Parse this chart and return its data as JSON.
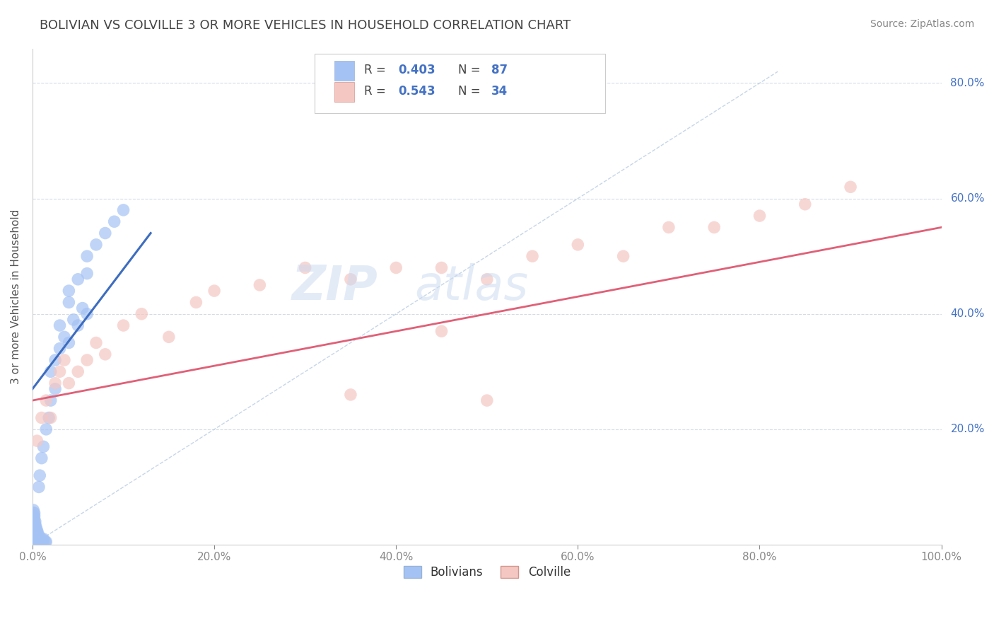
{
  "title": "BOLIVIAN VS COLVILLE 3 OR MORE VEHICLES IN HOUSEHOLD CORRELATION CHART",
  "source": "Source: ZipAtlas.com",
  "ylabel": "3 or more Vehicles in Household",
  "blue_R": "0.403",
  "blue_N": "87",
  "pink_R": "0.543",
  "pink_N": "34",
  "blue_color": "#a4c2f4",
  "pink_color": "#f4c7c3",
  "blue_line_color": "#3d6dbf",
  "pink_line_color": "#e06077",
  "diagonal_color": "#b8cce4",
  "background_color": "#ffffff",
  "grid_color": "#d0d8e0",
  "watermark_color": "#c9d9f0",
  "title_color": "#444444",
  "ytick_color": "#4472c4",
  "xtick_color": "#888888",
  "blue_dots": [
    [
      0.001,
      0.005
    ],
    [
      0.001,
      0.008
    ],
    [
      0.001,
      0.01
    ],
    [
      0.001,
      0.015
    ],
    [
      0.001,
      0.02
    ],
    [
      0.001,
      0.025
    ],
    [
      0.001,
      0.03
    ],
    [
      0.001,
      0.035
    ],
    [
      0.001,
      0.04
    ],
    [
      0.001,
      0.045
    ],
    [
      0.001,
      0.05
    ],
    [
      0.001,
      0.055
    ],
    [
      0.001,
      0.06
    ],
    [
      0.002,
      0.005
    ],
    [
      0.002,
      0.01
    ],
    [
      0.002,
      0.015
    ],
    [
      0.002,
      0.02
    ],
    [
      0.002,
      0.025
    ],
    [
      0.002,
      0.03
    ],
    [
      0.002,
      0.035
    ],
    [
      0.002,
      0.04
    ],
    [
      0.002,
      0.045
    ],
    [
      0.002,
      0.05
    ],
    [
      0.002,
      0.055
    ],
    [
      0.003,
      0.005
    ],
    [
      0.003,
      0.01
    ],
    [
      0.003,
      0.015
    ],
    [
      0.003,
      0.02
    ],
    [
      0.003,
      0.025
    ],
    [
      0.003,
      0.03
    ],
    [
      0.003,
      0.035
    ],
    [
      0.003,
      0.04
    ],
    [
      0.004,
      0.005
    ],
    [
      0.004,
      0.01
    ],
    [
      0.004,
      0.015
    ],
    [
      0.004,
      0.02
    ],
    [
      0.004,
      0.025
    ],
    [
      0.004,
      0.03
    ],
    [
      0.005,
      0.005
    ],
    [
      0.005,
      0.01
    ],
    [
      0.005,
      0.015
    ],
    [
      0.005,
      0.02
    ],
    [
      0.005,
      0.025
    ],
    [
      0.006,
      0.005
    ],
    [
      0.006,
      0.01
    ],
    [
      0.006,
      0.015
    ],
    [
      0.006,
      0.02
    ],
    [
      0.007,
      0.005
    ],
    [
      0.007,
      0.01
    ],
    [
      0.007,
      0.015
    ],
    [
      0.008,
      0.005
    ],
    [
      0.008,
      0.01
    ],
    [
      0.009,
      0.005
    ],
    [
      0.009,
      0.01
    ],
    [
      0.01,
      0.005
    ],
    [
      0.01,
      0.01
    ],
    [
      0.012,
      0.005
    ],
    [
      0.012,
      0.01
    ],
    [
      0.014,
      0.005
    ],
    [
      0.015,
      0.005
    ],
    [
      0.03,
      0.38
    ],
    [
      0.04,
      0.42
    ],
    [
      0.04,
      0.44
    ],
    [
      0.05,
      0.46
    ],
    [
      0.06,
      0.47
    ],
    [
      0.06,
      0.5
    ],
    [
      0.07,
      0.52
    ],
    [
      0.08,
      0.54
    ],
    [
      0.09,
      0.56
    ],
    [
      0.1,
      0.58
    ],
    [
      0.04,
      0.35
    ],
    [
      0.05,
      0.38
    ],
    [
      0.06,
      0.4
    ],
    [
      0.035,
      0.36
    ],
    [
      0.045,
      0.39
    ],
    [
      0.055,
      0.41
    ],
    [
      0.02,
      0.3
    ],
    [
      0.025,
      0.32
    ],
    [
      0.03,
      0.34
    ],
    [
      0.02,
      0.25
    ],
    [
      0.025,
      0.27
    ],
    [
      0.015,
      0.2
    ],
    [
      0.018,
      0.22
    ],
    [
      0.01,
      0.15
    ],
    [
      0.012,
      0.17
    ],
    [
      0.008,
      0.12
    ],
    [
      0.007,
      0.1
    ]
  ],
  "pink_dots": [
    [
      0.005,
      0.18
    ],
    [
      0.01,
      0.22
    ],
    [
      0.015,
      0.25
    ],
    [
      0.02,
      0.22
    ],
    [
      0.025,
      0.28
    ],
    [
      0.03,
      0.3
    ],
    [
      0.035,
      0.32
    ],
    [
      0.04,
      0.28
    ],
    [
      0.05,
      0.3
    ],
    [
      0.06,
      0.32
    ],
    [
      0.07,
      0.35
    ],
    [
      0.08,
      0.33
    ],
    [
      0.1,
      0.38
    ],
    [
      0.12,
      0.4
    ],
    [
      0.15,
      0.36
    ],
    [
      0.18,
      0.42
    ],
    [
      0.2,
      0.44
    ],
    [
      0.25,
      0.45
    ],
    [
      0.3,
      0.48
    ],
    [
      0.35,
      0.46
    ],
    [
      0.4,
      0.48
    ],
    [
      0.45,
      0.48
    ],
    [
      0.5,
      0.46
    ],
    [
      0.55,
      0.5
    ],
    [
      0.6,
      0.52
    ],
    [
      0.65,
      0.5
    ],
    [
      0.7,
      0.55
    ],
    [
      0.75,
      0.55
    ],
    [
      0.8,
      0.57
    ],
    [
      0.85,
      0.59
    ],
    [
      0.9,
      0.62
    ],
    [
      0.35,
      0.26
    ],
    [
      0.45,
      0.37
    ],
    [
      0.5,
      0.25
    ]
  ],
  "blue_line_x": [
    0.0,
    0.13
  ],
  "blue_line_y": [
    0.27,
    0.54
  ],
  "pink_line_x": [
    0.0,
    1.0
  ],
  "pink_line_y": [
    0.25,
    0.55
  ],
  "diag_line_x": [
    0.0,
    0.82
  ],
  "diag_line_y": [
    0.0,
    0.82
  ],
  "xlim": [
    0.0,
    1.0
  ],
  "ylim": [
    0.0,
    0.86
  ],
  "xticks": [
    0.0,
    0.2,
    0.4,
    0.6,
    0.8,
    1.0
  ],
  "xtick_labels": [
    "0.0%",
    "20.0%",
    "40.0%",
    "60.0%",
    "80.0%",
    "100.0%"
  ],
  "yticks": [
    0.2,
    0.4,
    0.6,
    0.8
  ],
  "ytick_labels": [
    "20.0%",
    "40.0%",
    "60.0%",
    "80.0%"
  ]
}
